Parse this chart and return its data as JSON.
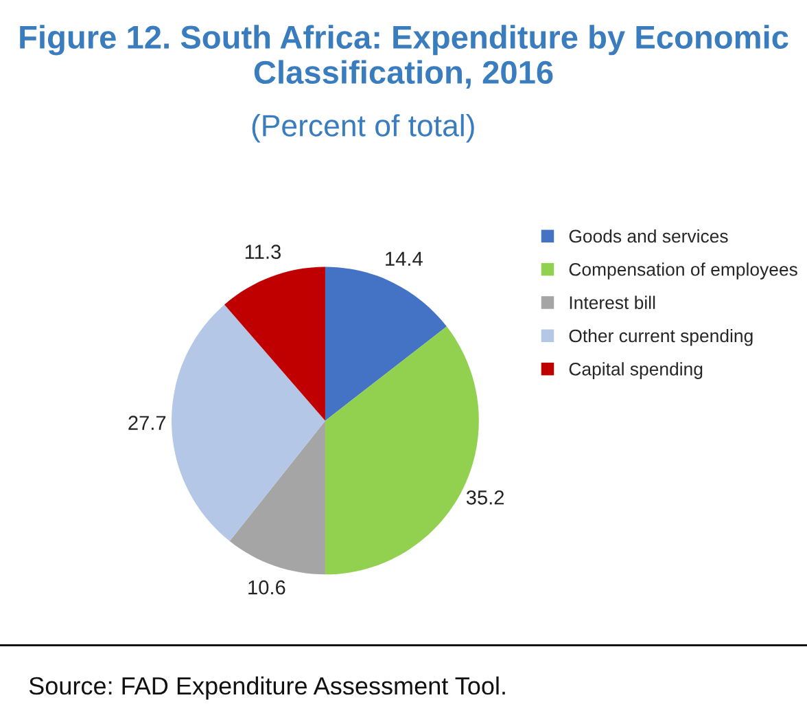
{
  "chart_data": {
    "type": "pie",
    "title": "Figure 12. South Africa: Expenditure by Economic Classification, 2016",
    "subtitle": "(Percent of total)",
    "categories": [
      "Goods and services",
      "Compensation of employees",
      "Interest bill",
      "Other current spending",
      "Capital spending"
    ],
    "values": [
      14.4,
      35.2,
      10.6,
      27.7,
      11.3
    ],
    "colors": [
      "#4472c4",
      "#92d050",
      "#a5a5a5",
      "#b4c7e7",
      "#c00000"
    ],
    "data_labels": true,
    "legend": "right",
    "annotations": [
      "Source: FAD Expenditure Assessment Tool."
    ]
  }
}
